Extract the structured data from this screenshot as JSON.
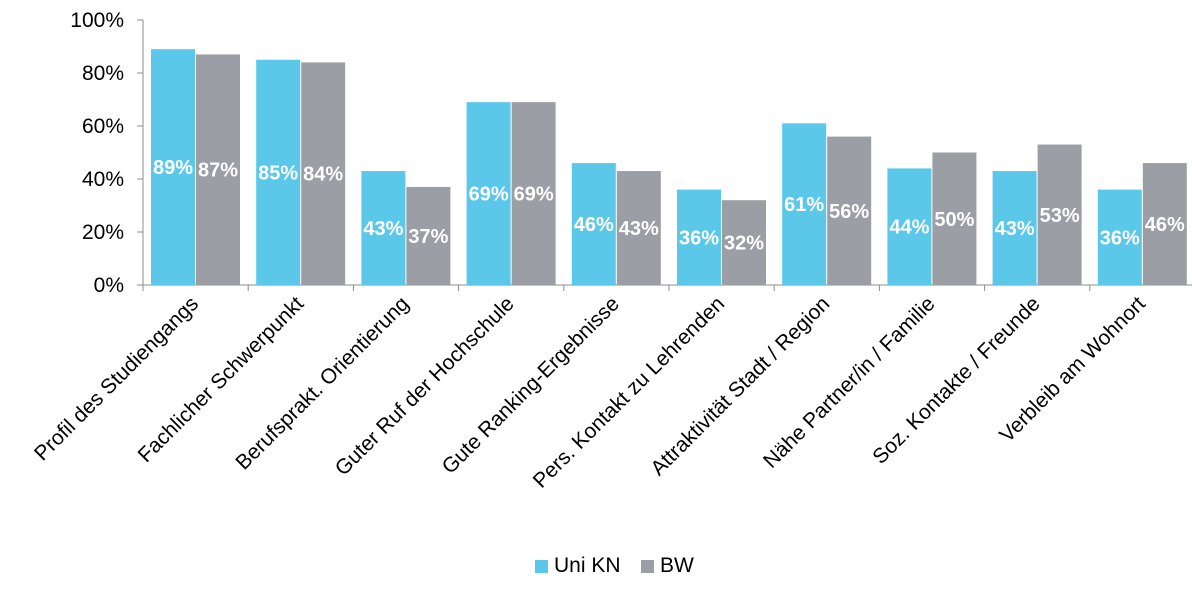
{
  "chart_data": {
    "type": "bar",
    "categories": [
      "Profil des Studiengangs",
      "Fachlicher Schwerpunkt",
      "Berufsprakt. Orientierung",
      "Guter Ruf der Hochschule",
      "Gute Ranking-Ergebnisse",
      "Pers. Kontakt zu Lehrenden",
      "Attraktivität Stadt / Region",
      "Nähe Partner/in / Familie",
      "Soz. Kontakte / Freunde",
      "Verbleib am Wohnort"
    ],
    "series": [
      {
        "name": "Uni KN",
        "color": "#5bc8ea",
        "values": [
          89,
          85,
          43,
          69,
          46,
          36,
          61,
          44,
          43,
          36
        ],
        "labels": [
          "89%",
          "85%",
          "43%",
          "69%",
          "46%",
          "36%",
          "61%",
          "44%",
          "43%",
          "36%"
        ]
      },
      {
        "name": "BW",
        "color": "#9b9ea4",
        "values": [
          87,
          84,
          37,
          69,
          43,
          32,
          56,
          50,
          53,
          46
        ],
        "labels": [
          "87%",
          "84%",
          "37%",
          "69%",
          "43%",
          "32%",
          "56%",
          "50%",
          "53%",
          "46%"
        ]
      }
    ],
    "y_ticks": [
      "0%",
      "20%",
      "40%",
      "60%",
      "80%",
      "100%"
    ],
    "ylim": [
      0,
      100
    ],
    "xlabel": "",
    "ylabel": "",
    "grid": false,
    "legend_position": "bottom"
  }
}
